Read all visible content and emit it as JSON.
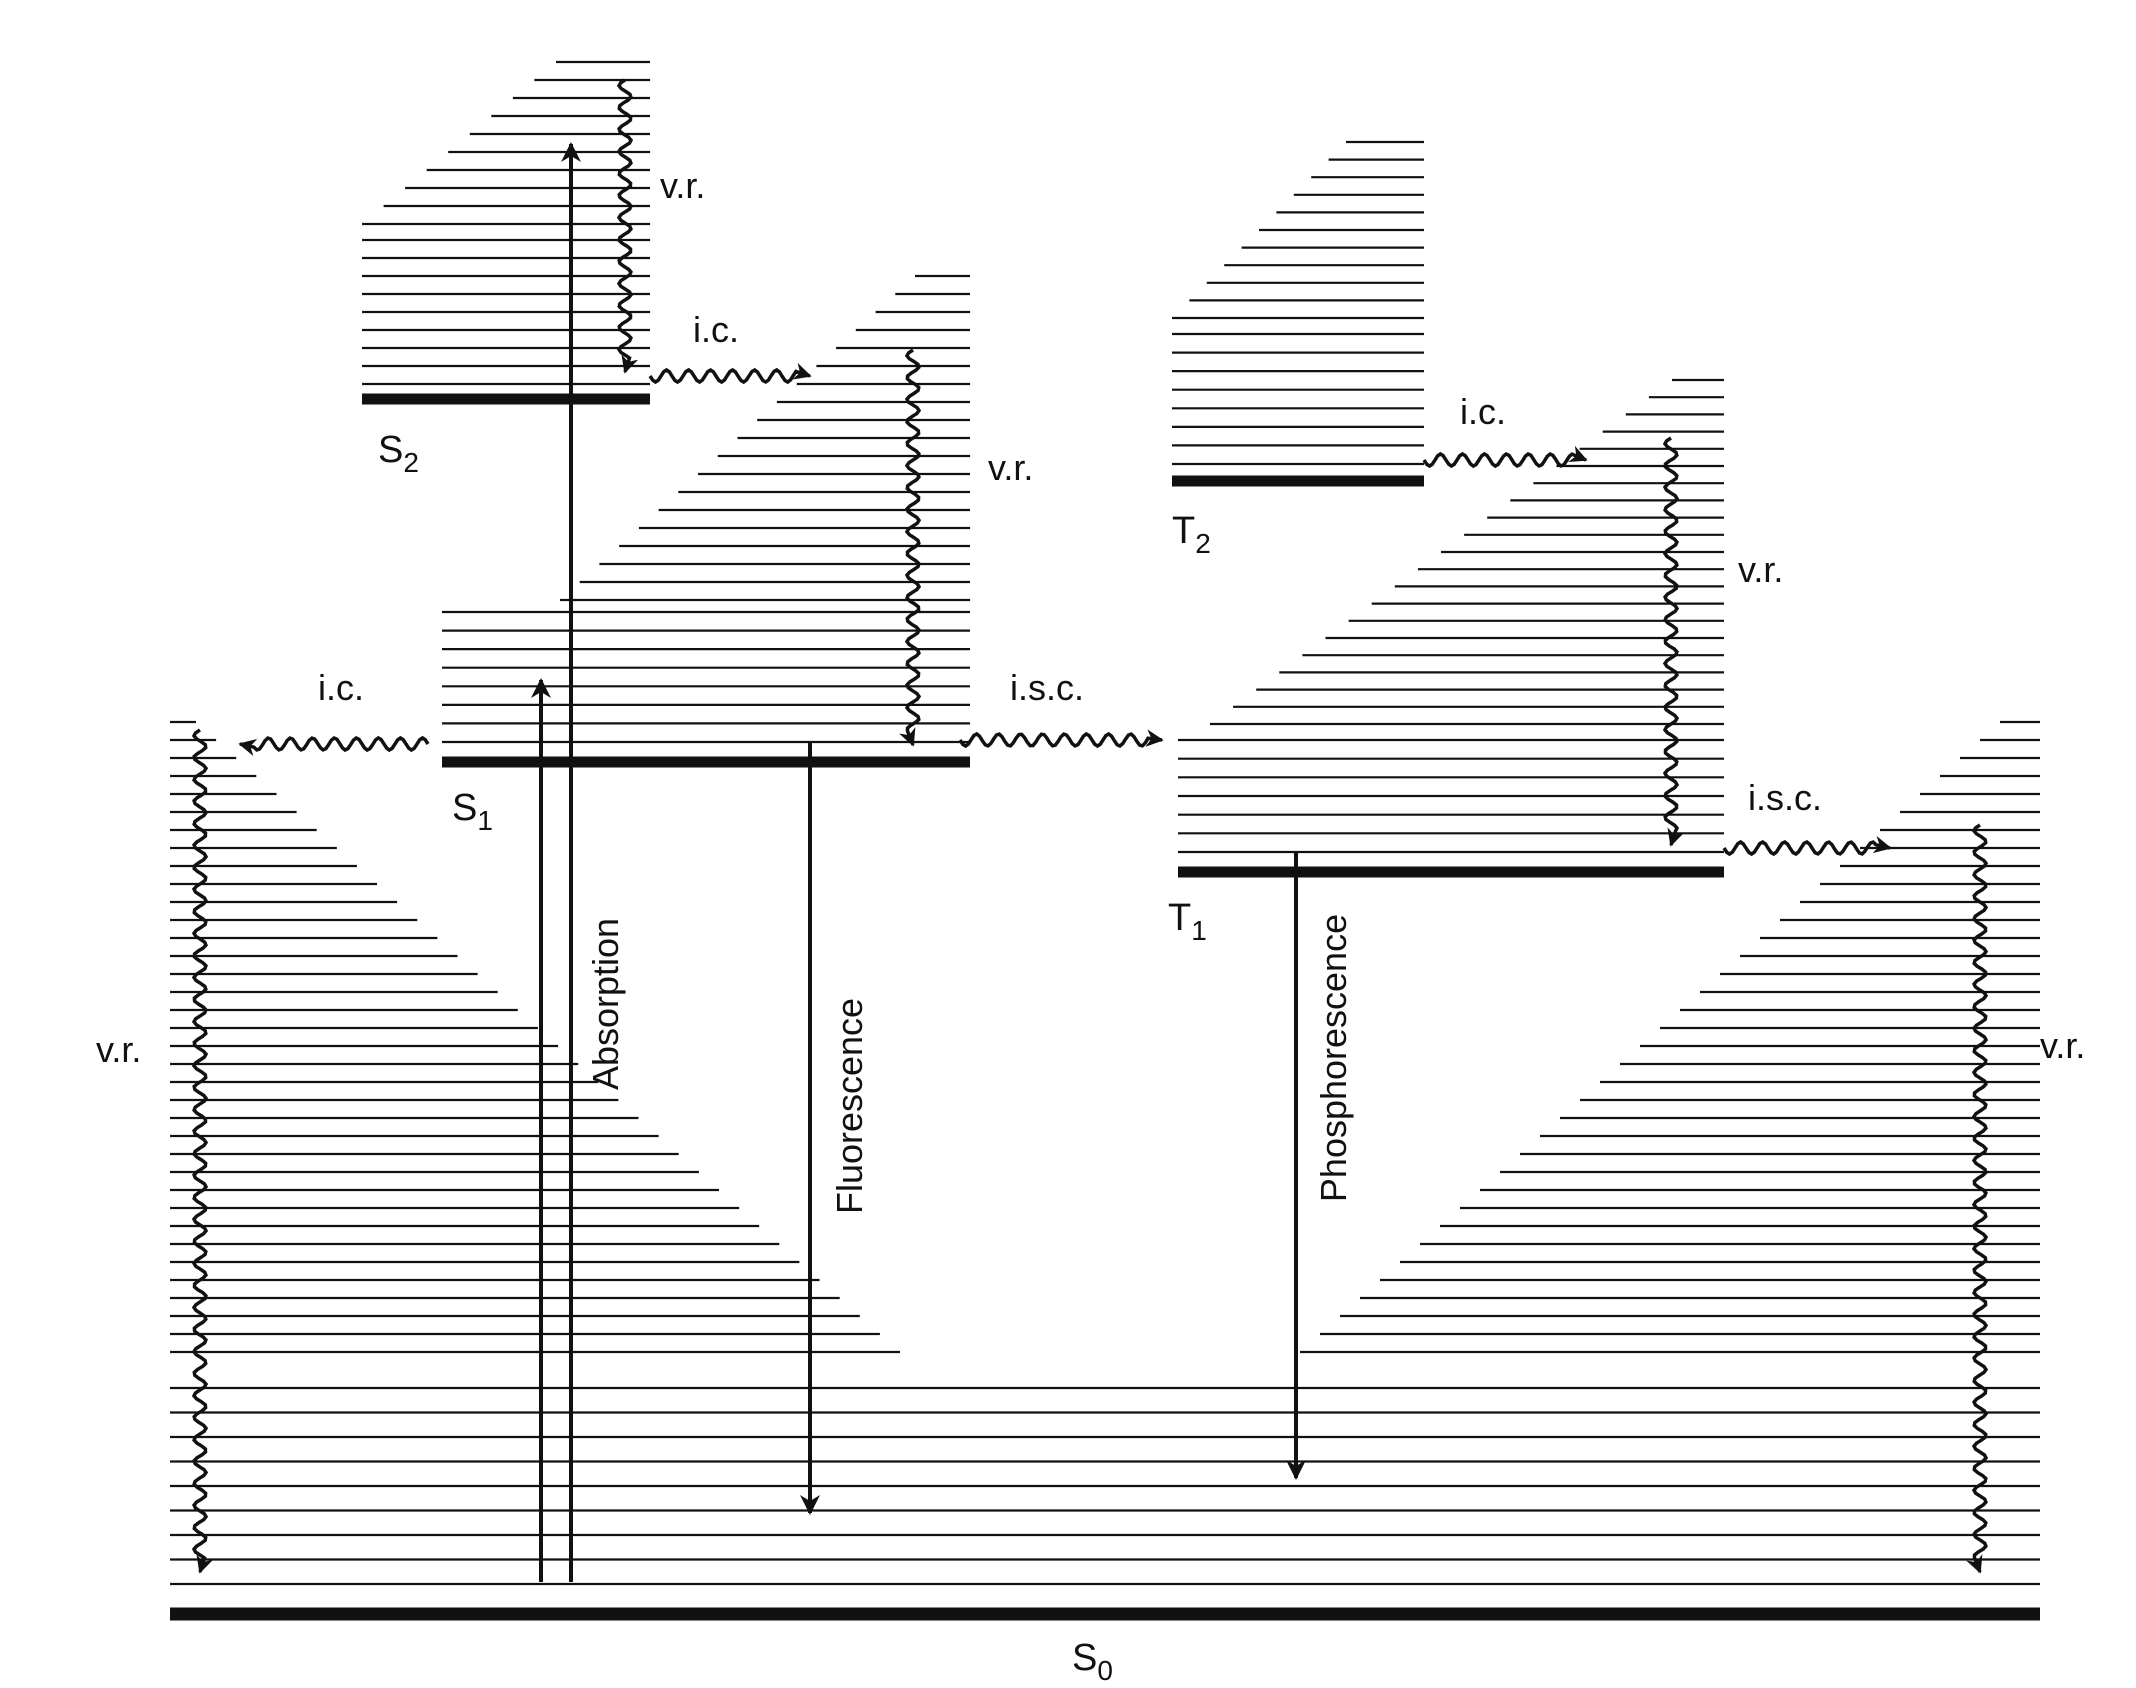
{
  "colors": {
    "line": "#111111",
    "background": "#ffffff"
  },
  "states": {
    "S2": {
      "base": "S",
      "sub": "2"
    },
    "S1": {
      "base": "S",
      "sub": "1"
    },
    "S0": {
      "base": "S",
      "sub": "0"
    },
    "T2": {
      "base": "T",
      "sub": "2"
    },
    "T1": {
      "base": "T",
      "sub": "1"
    }
  },
  "processes": {
    "absorption": "Absorption",
    "fluorescence": "Fluorescence",
    "phosphorescence": "Phosphorescence",
    "vr": "v.r.",
    "ic": "i.c.",
    "isc": "i.s.c."
  }
}
